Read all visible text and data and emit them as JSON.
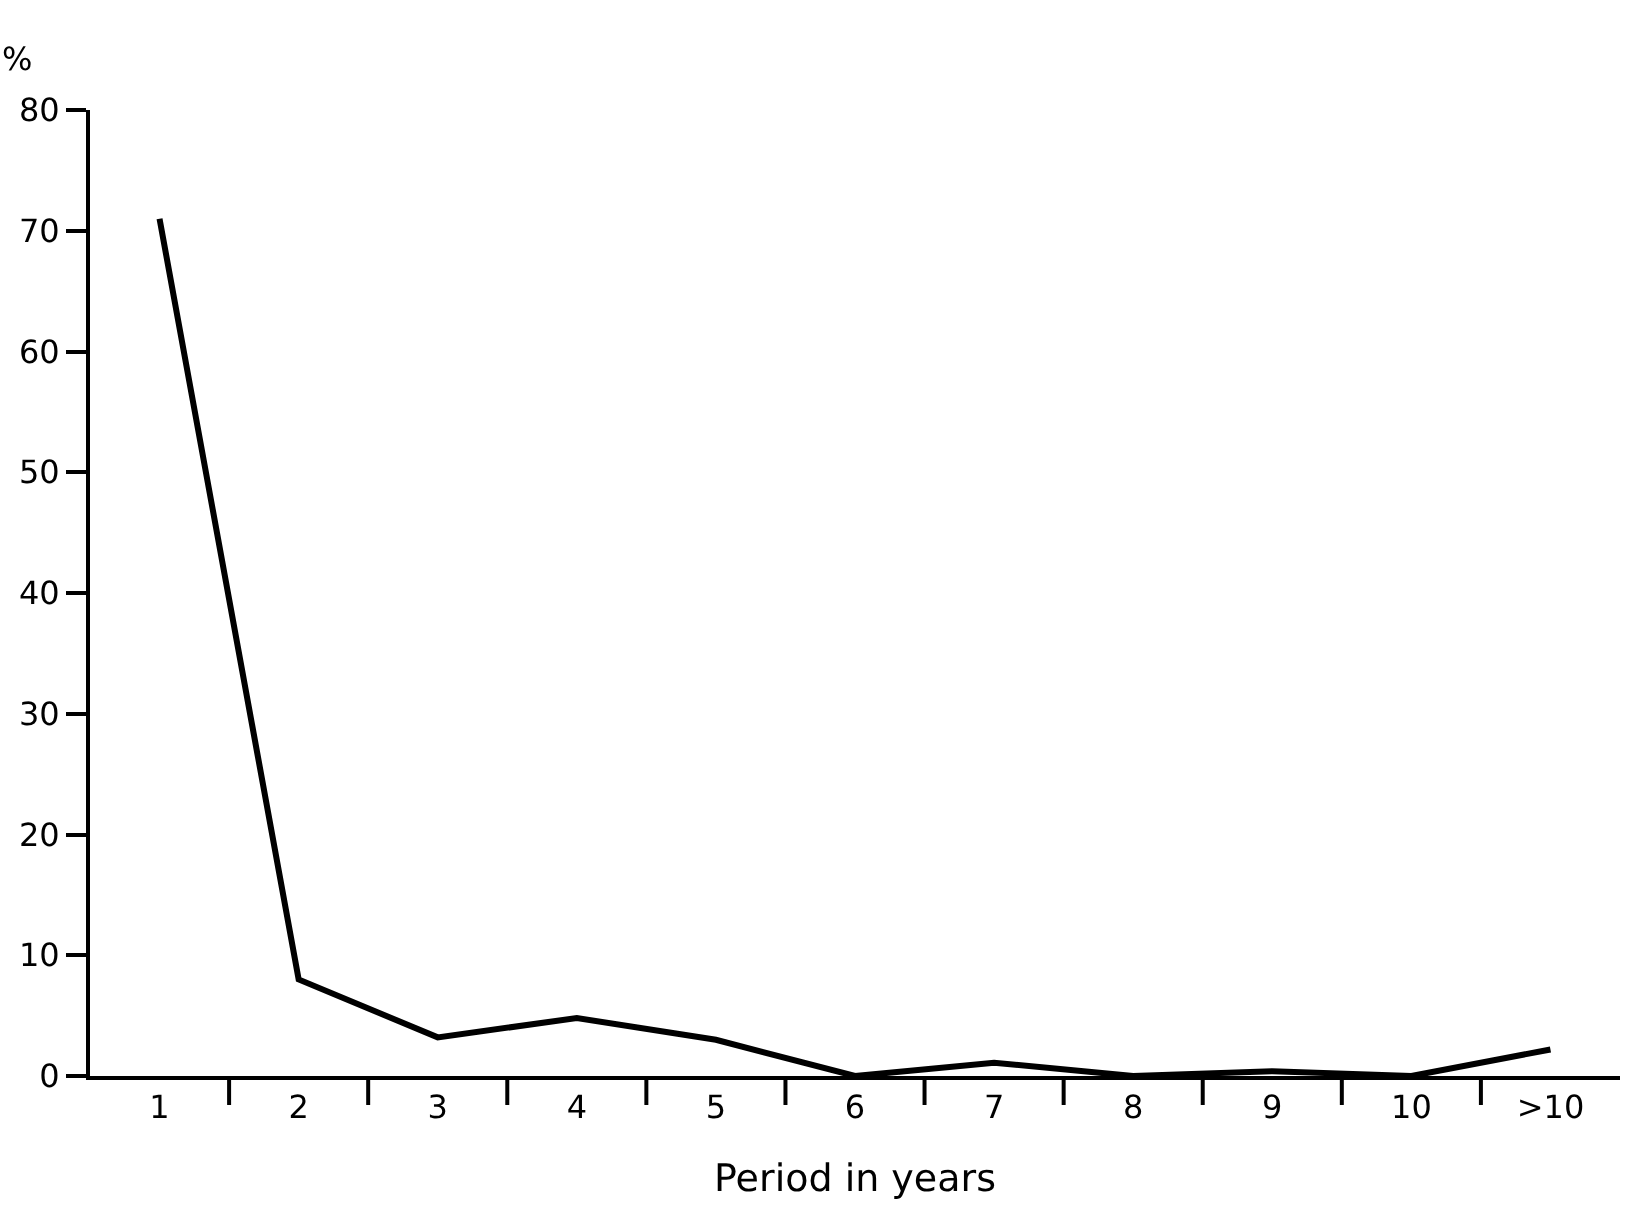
{
  "chart_data": {
    "type": "line",
    "xlabel": "Period in years",
    "ylabel": "%",
    "categories": [
      "1",
      "2",
      "3",
      "4",
      "5",
      "6",
      "7",
      "8",
      "9",
      "10",
      ">10"
    ],
    "series": [
      {
        "color": "#000000",
        "values": [
          71,
          8,
          3.2,
          4.8,
          3,
          0,
          1.1,
          0,
          0.4,
          0,
          2.2
        ]
      }
    ],
    "ylim": [
      0,
      80
    ],
    "yticks": [
      0,
      10,
      20,
      30,
      40,
      50,
      60,
      70,
      80
    ],
    "marker": "none",
    "line_style": "solid"
  }
}
